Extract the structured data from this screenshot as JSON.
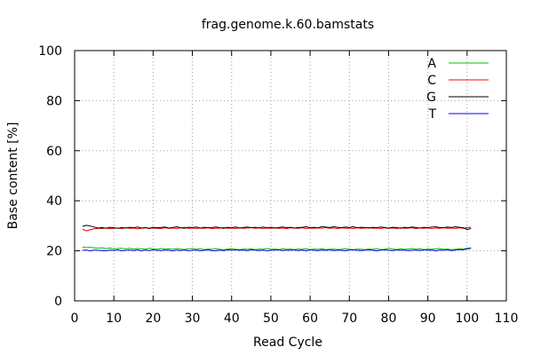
{
  "chart_data": {
    "type": "line",
    "title": "frag.genome.k.60.bamstats",
    "xlabel": "Read Cycle",
    "ylabel": "Base content [%]",
    "xlim": [
      0,
      110
    ],
    "ylim": [
      0,
      100
    ],
    "xticks": [
      0,
      10,
      20,
      30,
      40,
      50,
      60,
      70,
      80,
      90,
      100,
      110
    ],
    "yticks": [
      0,
      20,
      40,
      60,
      80,
      100
    ],
    "grid": true,
    "legend_position": "top-right",
    "x": [
      2,
      3,
      4,
      5,
      6,
      7,
      8,
      9,
      10,
      11,
      12,
      13,
      14,
      15,
      16,
      17,
      18,
      19,
      20,
      21,
      22,
      23,
      24,
      25,
      26,
      27,
      28,
      29,
      30,
      31,
      32,
      33,
      34,
      35,
      36,
      37,
      38,
      39,
      40,
      41,
      42,
      43,
      44,
      45,
      46,
      47,
      48,
      49,
      50,
      51,
      52,
      53,
      54,
      55,
      56,
      57,
      58,
      59,
      60,
      61,
      62,
      63,
      64,
      65,
      66,
      67,
      68,
      69,
      70,
      71,
      72,
      73,
      74,
      75,
      76,
      77,
      78,
      79,
      80,
      81,
      82,
      83,
      84,
      85,
      86,
      87,
      88,
      89,
      90,
      91,
      92,
      93,
      94,
      95,
      96,
      97,
      98,
      99,
      100,
      101
    ],
    "series": [
      {
        "name": "A",
        "color": "#00c000",
        "values": [
          21.5,
          21.3,
          21.4,
          21.2,
          21.0,
          21.2,
          20.9,
          21.1,
          20.8,
          20.9,
          21.0,
          20.8,
          21.0,
          20.7,
          20.9,
          20.8,
          20.6,
          21.0,
          20.8,
          20.6,
          20.9,
          20.7,
          20.8,
          20.6,
          20.9,
          20.7,
          20.5,
          20.8,
          20.9,
          20.6,
          20.8,
          20.5,
          20.7,
          20.6,
          20.8,
          20.6,
          20.4,
          20.7,
          20.8,
          20.6,
          20.5,
          20.7,
          20.6,
          20.8,
          20.5,
          20.7,
          20.6,
          20.9,
          20.6,
          20.7,
          20.5,
          20.8,
          20.6,
          20.7,
          20.5,
          20.7,
          20.6,
          20.8,
          20.5,
          20.7,
          20.6,
          20.8,
          20.5,
          20.6,
          20.7,
          20.5,
          20.6,
          20.8,
          20.6,
          20.4,
          20.7,
          20.6,
          20.5,
          20.7,
          20.6,
          20.8,
          20.5,
          20.6,
          21.0,
          20.7,
          20.5,
          20.8,
          20.6,
          20.7,
          20.9,
          20.6,
          20.8,
          20.5,
          20.7,
          20.6,
          20.8,
          20.9,
          20.6,
          20.7,
          20.5,
          20.6,
          20.8,
          20.7,
          21.0,
          21.2
        ]
      },
      {
        "name": "C",
        "color": "#ff0000",
        "values": [
          28.6,
          28.0,
          28.4,
          28.8,
          29.0,
          28.9,
          29.1,
          28.8,
          29.0,
          29.1,
          28.9,
          29.2,
          29.0,
          29.1,
          28.8,
          29.0,
          29.2,
          28.9,
          29.1,
          29.0,
          28.9,
          29.2,
          29.0,
          29.1,
          28.9,
          29.2,
          29.4,
          29.0,
          29.1,
          28.9,
          29.1,
          29.0,
          29.2,
          28.9,
          29.0,
          29.1,
          29.3,
          29.0,
          29.1,
          28.9,
          29.2,
          29.0,
          29.1,
          29.3,
          29.0,
          29.2,
          28.9,
          29.1,
          29.0,
          29.2,
          29.0,
          29.1,
          28.9,
          29.2,
          29.1,
          29.0,
          29.2,
          28.9,
          29.1,
          29.0,
          29.2,
          29.0,
          29.3,
          29.0,
          29.1,
          28.9,
          29.2,
          29.0,
          29.1,
          28.9,
          29.2,
          29.0,
          29.1,
          29.3,
          29.0,
          29.1,
          28.9,
          29.2,
          29.0,
          29.1,
          28.9,
          29.2,
          29.0,
          29.1,
          29.2,
          28.9,
          29.1,
          29.0,
          29.2,
          28.9,
          29.1,
          29.0,
          29.2,
          29.0,
          29.1,
          28.9,
          29.2,
          29.0,
          29.3,
          29.4
        ]
      },
      {
        "name": "G",
        "color": "#000000",
        "values": [
          29.8,
          30.2,
          29.9,
          29.5,
          29.1,
          29.3,
          29.0,
          29.4,
          29.2,
          29.0,
          29.3,
          29.1,
          29.4,
          29.2,
          29.5,
          29.1,
          29.3,
          29.0,
          29.4,
          29.2,
          29.3,
          29.5,
          29.1,
          29.3,
          29.6,
          29.2,
          29.0,
          29.4,
          29.3,
          29.5,
          29.1,
          29.4,
          29.2,
          29.3,
          29.5,
          29.2,
          29.0,
          29.4,
          29.2,
          29.5,
          29.1,
          29.3,
          29.5,
          29.2,
          29.4,
          29.1,
          29.5,
          29.2,
          29.4,
          29.1,
          29.3,
          29.5,
          29.2,
          29.4,
          29.1,
          29.3,
          29.4,
          29.6,
          29.2,
          29.4,
          29.1,
          29.7,
          29.5,
          29.3,
          29.6,
          29.4,
          29.2,
          29.5,
          29.3,
          29.6,
          29.2,
          29.4,
          29.3,
          29.1,
          29.4,
          29.2,
          29.5,
          29.3,
          29.1,
          29.4,
          29.3,
          29.0,
          29.4,
          29.2,
          29.5,
          29.3,
          29.1,
          29.4,
          29.2,
          29.5,
          29.6,
          29.3,
          29.2,
          29.5,
          29.3,
          29.6,
          29.4,
          29.2,
          28.5,
          28.9
        ]
      },
      {
        "name": "T",
        "color": "#0000ff",
        "values": [
          20.2,
          20.3,
          20.0,
          20.3,
          20.2,
          20.1,
          20.0,
          20.3,
          20.1,
          20.4,
          20.0,
          20.2,
          20.3,
          20.1,
          20.4,
          20.0,
          20.3,
          20.1,
          20.4,
          20.2,
          20.1,
          20.3,
          20.2,
          20.0,
          20.3,
          20.1,
          20.4,
          20.0,
          20.2,
          20.3,
          20.0,
          20.2,
          20.4,
          20.1,
          20.0,
          20.3,
          20.1,
          20.4,
          20.2,
          20.4,
          20.2,
          20.3,
          20.1,
          20.4,
          20.3,
          20.1,
          20.3,
          20.0,
          20.2,
          20.3,
          20.4,
          20.1,
          20.3,
          20.2,
          20.4,
          20.1,
          20.3,
          20.0,
          20.4,
          20.2,
          20.1,
          20.3,
          20.2,
          20.4,
          20.1,
          20.3,
          20.2,
          20.0,
          20.3,
          20.4,
          20.2,
          20.1,
          20.3,
          20.4,
          20.2,
          20.0,
          20.3,
          20.4,
          20.2,
          20.1,
          20.4,
          20.2,
          20.3,
          20.1,
          20.2,
          20.3,
          20.1,
          20.4,
          20.2,
          20.3,
          20.0,
          20.3,
          20.2,
          20.4,
          20.1,
          20.3,
          20.5,
          20.4,
          20.8,
          21.0
        ]
      }
    ]
  }
}
